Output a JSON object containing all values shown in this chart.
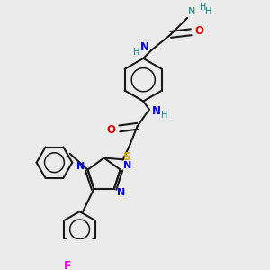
{
  "bg_color": "#ebebeb",
  "atom_colors": {
    "C": "#1a1a1a",
    "N": "#0000ee",
    "O": "#dd0000",
    "S": "#ccaa00",
    "F": "#ee00ee",
    "H": "#008080"
  },
  "bond_color": "#1a1a1a",
  "bond_width": 1.5
}
